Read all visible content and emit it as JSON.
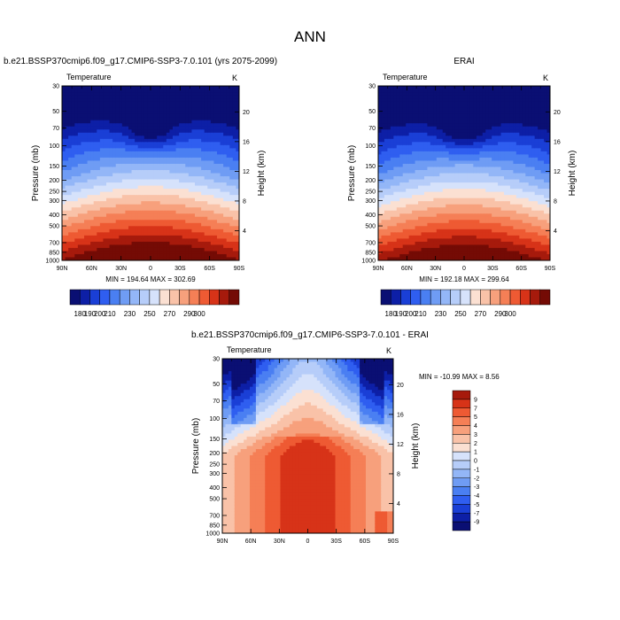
{
  "page_title": "ANN",
  "chart_data": [
    {
      "type": "heatmap",
      "title": "b.e21.BSSP370cmip6.f09_g17.CMIP6-SSP3-7.0.101 (yrs 2075-2099)",
      "left_label": "Temperature",
      "right_label": "K",
      "ylabel": "Pressure (mb)",
      "ylabel_right": "Height (km)",
      "x_ticks": [
        "90N",
        "60N",
        "30N",
        "0",
        "30S",
        "60S",
        "90S"
      ],
      "y_ticks": [
        "30",
        "50",
        "70",
        "100",
        "150",
        "200",
        "250",
        "300",
        "400",
        "500",
        "700",
        "850",
        "1000"
      ],
      "y_ticks_right": [
        "20",
        "16",
        "12",
        "8",
        "4"
      ],
      "stats": "MIN = 194.64   MAX = 302.69",
      "min": 194.64,
      "max": 302.69,
      "colorbar_labels": [
        "180",
        "190",
        "200",
        "210",
        "230",
        "250",
        "270",
        "290",
        "300"
      ]
    },
    {
      "type": "heatmap",
      "title": "ERAI",
      "left_label": "Temperature",
      "right_label": "K",
      "ylabel": "Pressure (mb)",
      "ylabel_right": "Height (km)",
      "x_ticks": [
        "90N",
        "60N",
        "30N",
        "0",
        "30S",
        "60S",
        "90S"
      ],
      "y_ticks": [
        "30",
        "50",
        "70",
        "100",
        "150",
        "200",
        "250",
        "300",
        "400",
        "500",
        "700",
        "850",
        "1000"
      ],
      "y_ticks_right": [
        "20",
        "16",
        "12",
        "8",
        "4"
      ],
      "stats": "MIN = 192.18   MAX = 299.64",
      "min": 192.18,
      "max": 299.64,
      "colorbar_labels": [
        "180",
        "190",
        "200",
        "210",
        "230",
        "250",
        "270",
        "290",
        "300"
      ]
    },
    {
      "type": "heatmap",
      "title": "b.e21.BSSP370cmip6.f09_g17.CMIP6-SSP3-7.0.101 - ERAI",
      "left_label": "Temperature",
      "right_label": "K",
      "ylabel": "Pressure (mb)",
      "ylabel_right": "Height (km)",
      "x_ticks": [
        "90N",
        "60N",
        "30N",
        "0",
        "30S",
        "60S",
        "90S"
      ],
      "y_ticks": [
        "30",
        "50",
        "70",
        "100",
        "150",
        "200",
        "250",
        "300",
        "400",
        "500",
        "700",
        "850",
        "1000"
      ],
      "y_ticks_right": [
        "20",
        "16",
        "12",
        "8",
        "4"
      ],
      "stats": "MIN = -10.99   MAX =   8.56",
      "min": -10.99,
      "max": 8.56,
      "colorbar_labels": [
        "9",
        "7",
        "5",
        "4",
        "3",
        "2",
        "1",
        "0",
        "-1",
        "-2",
        "-3",
        "-4",
        "-5",
        "-7",
        "-9"
      ]
    }
  ],
  "colors": {
    "abs_scale": [
      "#0a0f73",
      "#0d1fa6",
      "#1a3fd6",
      "#2f5ef0",
      "#4a7ff2",
      "#6f9cf4",
      "#93b6f7",
      "#b6cdf9",
      "#d6e2fb",
      "#fbe0d2",
      "#f9c2a8",
      "#f7a07c",
      "#f57f56",
      "#ee5a33",
      "#d73318",
      "#a61a0c",
      "#740b05"
    ],
    "diff_scale": [
      "#0a0f73",
      "#0d1fa6",
      "#1a3fd6",
      "#2f5ef0",
      "#4a7ff2",
      "#6f9cf4",
      "#93b6f7",
      "#b6cdf9",
      "#d6e2fb",
      "#fbe0d2",
      "#f9c2a8",
      "#f7a07c",
      "#f57f56",
      "#ee5a33",
      "#d73318",
      "#a61a0c"
    ]
  }
}
